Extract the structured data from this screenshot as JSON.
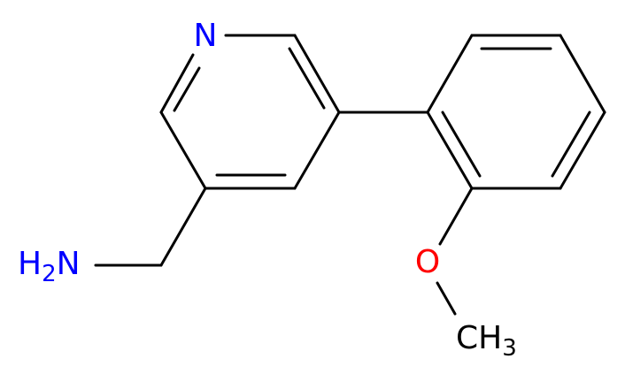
{
  "atoms": {
    "pyridine_n": "N",
    "amine": {
      "h": "H",
      "count": "2",
      "n": "N"
    },
    "oxygen": "O",
    "methyl": {
      "c": "CH",
      "count": "3"
    }
  }
}
